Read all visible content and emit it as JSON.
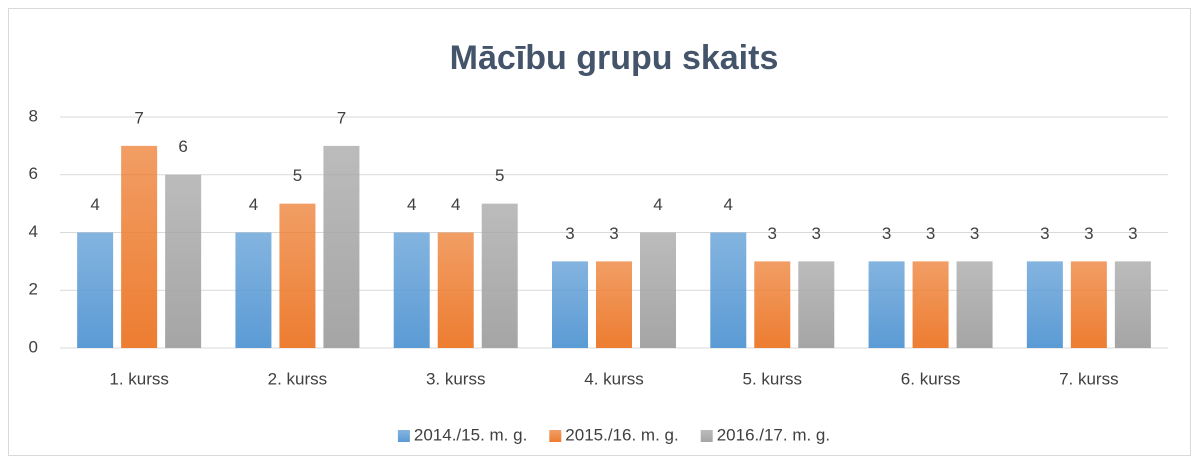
{
  "chart_data": {
    "type": "bar",
    "title": "Mācību grupu skaits",
    "categories": [
      "1. kurss",
      "2. kurss",
      "3. kurss",
      "4. kurss",
      "5. kurss",
      "6. kurss",
      "7. kurss"
    ],
    "series": [
      {
        "name": "2014./15. m. g.",
        "color": "#5b9bd5",
        "values": [
          4,
          4,
          4,
          3,
          4,
          3,
          3
        ]
      },
      {
        "name": "2015./16. m. g.",
        "color": "#ed7d31",
        "values": [
          7,
          5,
          4,
          3,
          3,
          3,
          3
        ]
      },
      {
        "name": "2016./17. m. g.",
        "color": "#a5a5a5",
        "values": [
          6,
          7,
          5,
          4,
          3,
          3,
          3
        ]
      }
    ],
    "ylim": [
      0,
      8
    ],
    "yticks": [
      0,
      2,
      4,
      6,
      8
    ],
    "grid": true,
    "legend": "bottom"
  }
}
